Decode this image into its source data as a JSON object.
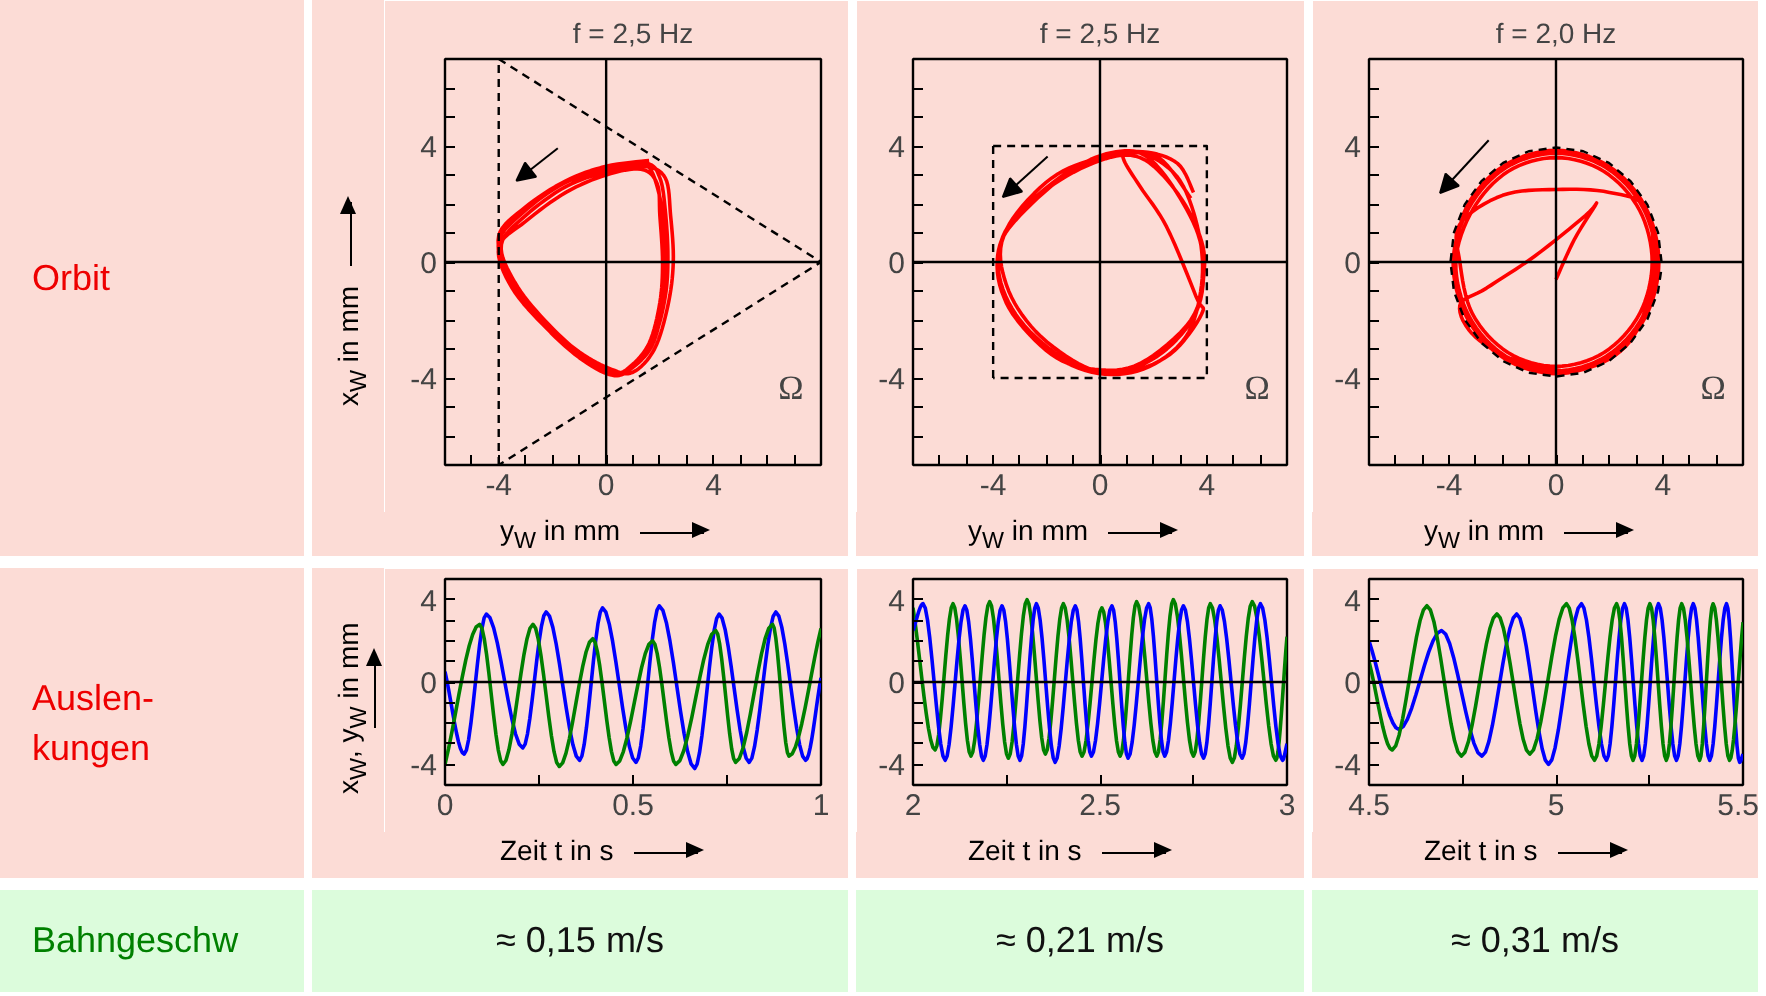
{
  "chart_data": [
    {
      "type": "line",
      "title": "f = 2,5 Hz",
      "xlabel": "y$_{W}$ in mm",
      "ylabel": "x$_{W}$ in mm",
      "xlim": [
        -6,
        8
      ],
      "ylim": [
        -7,
        7
      ],
      "xticks": [
        {
          "value": -6,
          "label": null
        },
        {
          "value": -5,
          "label": null
        },
        -4,
        {
          "value": -3,
          "label": null
        },
        {
          "value": -2,
          "label": null
        },
        {
          "value": -1,
          "label": null
        },
        0,
        {
          "value": 1,
          "label": null
        },
        {
          "value": 2,
          "label": null
        },
        {
          "value": 3,
          "label": null
        },
        4,
        {
          "value": 5,
          "label": null
        },
        {
          "value": 6,
          "label": null
        },
        {
          "value": 7,
          "label": null
        }
      ],
      "yticks": [
        {
          "value": -6,
          "label": null
        },
        {
          "value": -5,
          "label": null
        },
        -4,
        {
          "value": -3,
          "label": null
        },
        {
          "value": -2,
          "label": null
        },
        {
          "value": -1,
          "label": null
        },
        0,
        {
          "value": 1,
          "label": null
        },
        {
          "value": 2,
          "label": null
        },
        {
          "value": 3,
          "label": null
        },
        4,
        {
          "value": 5,
          "label": null
        },
        {
          "value": 6,
          "label": null
        }
      ],
      "series": [
        {
          "color": "#ff0000",
          "x": [
            1.6,
            0,
            -1.5,
            -3,
            -4.0,
            -3.6,
            -2.5,
            -1,
            0.2,
            1.0,
            1.8,
            2.3,
            2.5,
            2.4,
            2.2,
            1.4,
            0,
            -1.5,
            -3,
            -3.9,
            -3.4,
            -2.3,
            -0.9,
            0.3,
            0.9,
            1.6,
            2.0,
            2.1,
            2.0,
            1.9,
            1.3,
            0,
            -1.5,
            -3,
            -4.0,
            -3.5,
            -2.2,
            -0.8,
            0.4,
            1.1,
            1.8,
            2.2,
            2.3,
            2.2,
            2.0,
            1.5,
            0,
            -1.6,
            -3.1,
            -4.0,
            -3.6,
            -2.4,
            -1.0,
            0.2,
            0.9,
            1.7,
            2.1,
            2.2,
            2.1,
            1.8,
            1.5
          ],
          "values": [
            3.5,
            3.3,
            2.8,
            1.9,
            0.9,
            -0.5,
            -1.9,
            -3.1,
            -3.7,
            -3.8,
            -3.0,
            -1.5,
            0,
            1.6,
            2.9,
            3.3,
            3.1,
            2.6,
            1.6,
            0.6,
            -0.7,
            -2.0,
            -3.2,
            -3.8,
            -3.6,
            -2.8,
            -1.4,
            0,
            1.6,
            2.7,
            3.2,
            3.0,
            2.4,
            1.4,
            0.5,
            -0.9,
            -2.3,
            -3.4,
            -3.9,
            -3.5,
            -2.6,
            -1.2,
            0.2,
            1.8,
            2.9,
            3.4,
            3.2,
            2.7,
            1.7,
            0.7,
            -0.6,
            -2.1,
            -3.3,
            -3.9,
            -3.7,
            -2.9,
            -1.5,
            0,
            1.7,
            2.9,
            3.4
          ]
        },
        {
          "color": "#000000",
          "line_style": "dashed",
          "x": [
            -4,
            8,
            -4
          ],
          "values": [
            7,
            0,
            -7
          ]
        },
        {
          "color": "#000000",
          "line_style": "dashed",
          "x": [
            -4,
            -4
          ],
          "values": [
            -7,
            7
          ]
        }
      ],
      "ref_lines": [
        {
          "axis": "x",
          "value": 0,
          "color": "#000000"
        },
        {
          "axis": "y",
          "value": 0,
          "color": "#000000"
        }
      ],
      "annotations": [
        "Ω"
      ]
    },
    {
      "type": "line",
      "title": "f = 2,5 Hz",
      "xlabel": "y$_{W}$ in mm",
      "xlim": [
        -7,
        7
      ],
      "ylim": [
        -7,
        7
      ],
      "xticks": [
        {
          "value": -6,
          "label": null
        },
        {
          "value": -5,
          "label": null
        },
        -4,
        {
          "value": -3,
          "label": null
        },
        {
          "value": -2,
          "label": null
        },
        {
          "value": -1,
          "label": null
        },
        0,
        {
          "value": 1,
          "label": null
        },
        {
          "value": 2,
          "label": null
        },
        {
          "value": 3,
          "label": null
        },
        4,
        {
          "value": 5,
          "label": null
        },
        {
          "value": 6,
          "label": null
        }
      ],
      "yticks": [
        {
          "value": -6,
          "label": null
        },
        {
          "value": -5,
          "label": null
        },
        -4,
        {
          "value": -3,
          "label": null
        },
        {
          "value": -2,
          "label": null
        },
        {
          "value": -1,
          "label": null
        },
        0,
        {
          "value": 1,
          "label": null
        },
        {
          "value": 2,
          "label": null
        },
        {
          "value": 3,
          "label": null
        },
        4,
        {
          "value": 5,
          "label": null
        },
        {
          "value": 6,
          "label": null
        }
      ],
      "series": [
        {
          "color": "#ff0000",
          "x": [
            3.4,
            2.2,
            0.8,
            -1.2,
            -3.3,
            -3.8,
            -3.4,
            -1.8,
            -0.2,
            1.5,
            3.4,
            3.9,
            3.7,
            2.8,
            1.5,
            0,
            -2,
            -3.6,
            -3.5,
            -2.4,
            -0.6,
            0.8,
            2.5,
            3.7,
            3.8,
            3.0,
            1.8,
            0.6,
            -1,
            -3,
            -3.8,
            -3.6,
            -2.2,
            -0.3,
            1.6,
            3.2,
            3.8,
            3.7,
            3.0,
            1.8,
            1.0,
            0.9,
            1.5,
            2.5,
            3.6,
            3.8,
            2.6,
            0.8,
            -1.2,
            -3.0,
            -3.8,
            -3.4,
            -1.8,
            0,
            1.6,
            2.9,
            3.5
          ],
          "values": [
            2.2,
            3.6,
            3.7,
            3.1,
            1.4,
            0,
            -1.6,
            -3.2,
            -3.7,
            -3.5,
            -2.0,
            -0.3,
            1.0,
            2.5,
            3.6,
            3.5,
            2.5,
            0.9,
            -0.8,
            -2.4,
            -3.6,
            -3.8,
            -3.0,
            -1.5,
            0.5,
            2.2,
            3.6,
            3.8,
            3.2,
            1.6,
            0.4,
            -1.2,
            -2.9,
            -3.8,
            -3.7,
            -2.6,
            -0.8,
            1.0,
            2.8,
            3.7,
            3.75,
            3.5,
            2.6,
            1.2,
            -1.2,
            -1.8,
            -3.2,
            -3.8,
            -3.4,
            -2.0,
            -0.3,
            1.3,
            2.9,
            3.6,
            3.8,
            3.4,
            2.4
          ]
        },
        {
          "color": "#000000",
          "line_style": "dashed",
          "x": [
            -4,
            4,
            4,
            -4
          ],
          "values": [
            4,
            4,
            -4,
            -4
          ]
        },
        {
          "color": "#000000",
          "line_style": "dashed",
          "x": [
            -4,
            -4
          ],
          "values": [
            -4,
            4
          ]
        }
      ],
      "ref_lines": [
        {
          "axis": "x",
          "value": 0,
          "color": "#000000"
        },
        {
          "axis": "y",
          "value": 0,
          "color": "#000000"
        }
      ],
      "annotations": [
        "Ω"
      ]
    },
    {
      "type": "line",
      "title": "f = 2,0 Hz",
      "xlabel": "y$_{W}$ in mm",
      "xlim": [
        -7,
        7
      ],
      "ylim": [
        -7,
        7
      ],
      "xticks": [
        {
          "value": -6,
          "label": null
        },
        {
          "value": -5,
          "label": null
        },
        -4,
        {
          "value": -3,
          "label": null
        },
        {
          "value": -2,
          "label": null
        },
        {
          "value": -1,
          "label": null
        },
        0,
        {
          "value": 1,
          "label": null
        },
        {
          "value": 2,
          "label": null
        },
        {
          "value": 3,
          "label": null
        },
        4,
        {
          "value": 5,
          "label": null
        },
        {
          "value": 6,
          "label": null
        }
      ],
      "yticks": [
        {
          "value": -6,
          "label": null
        },
        {
          "value": -5,
          "label": null
        },
        -4,
        {
          "value": -3,
          "label": null
        },
        {
          "value": -2,
          "label": null
        },
        {
          "value": -1,
          "label": null
        },
        0,
        {
          "value": 1,
          "label": null
        },
        {
          "value": 2,
          "label": null
        },
        {
          "value": 3,
          "label": null
        },
        4,
        {
          "value": 5,
          "label": null
        },
        {
          "value": 6,
          "label": null
        }
      ],
      "series": [
        {
          "color": "#ff0000",
          "x": [
            0,
            0.7,
            1.5,
            1.1,
            -0.8,
            -2.6,
            -3.6,
            -3.0,
            -1.2,
            1.0,
            2.8,
            3.6,
            3.4,
            2.0,
            0,
            -2,
            -3.6,
            -3.6,
            -3.12,
            -1.8,
            0,
            1.8,
            3.12,
            3.6,
            3.12,
            1.8,
            0,
            -1.8,
            -3.12,
            -3.75,
            -3.25,
            -1.88,
            0,
            1.88,
            3.25,
            3.75,
            3.25,
            1.88,
            0,
            -1.88,
            -3.25,
            -3.85,
            -3.33,
            -1.93,
            0,
            1.93,
            3.33,
            3.85,
            3.33,
            1.93,
            0,
            -1.93,
            -3.33,
            -3.85
          ],
          "values": [
            -0.6,
            0.8,
            2.0,
            1.6,
            0.2,
            -0.9,
            -1.5,
            -2.6,
            -3.5,
            -3.7,
            -2.7,
            -0.5,
            1.8,
            2.4,
            2.5,
            2.3,
            1.3,
            0,
            -1.8,
            -3.12,
            -3.6,
            -3.12,
            -1.8,
            0,
            1.8,
            3.12,
            3.6,
            3.12,
            1.8,
            0,
            -1.88,
            -3.25,
            -3.75,
            -3.25,
            -1.88,
            0,
            1.88,
            3.25,
            3.75,
            3.25,
            1.88,
            0,
            -1.93,
            -3.33,
            -3.85,
            -3.33,
            -1.93,
            0,
            1.93,
            3.33,
            3.85,
            3.33,
            1.93,
            0
          ]
        },
        {
          "color": "#000000",
          "line_style": "dashed",
          "x": [
            3.95,
            3.82,
            3.42,
            2.79,
            1.98,
            1.02,
            0,
            -1.02,
            -1.98,
            -2.79,
            -3.42,
            -3.82,
            -3.95,
            -3.82,
            -3.42,
            -2.79,
            -1.98,
            -1.02,
            0,
            1.02,
            1.98,
            2.79,
            3.42,
            3.82,
            3.93
          ],
          "values": [
            0,
            1.02,
            1.98,
            2.79,
            3.42,
            3.82,
            3.95,
            3.82,
            3.42,
            2.79,
            1.98,
            1.02,
            0,
            -1.02,
            -1.98,
            -2.79,
            -3.42,
            -3.82,
            -3.95,
            -3.82,
            -3.42,
            -2.79,
            -1.98,
            -1.02,
            -0.34
          ]
        }
      ],
      "ref_lines": [
        {
          "axis": "x",
          "value": 0,
          "color": "#000000"
        },
        {
          "axis": "y",
          "value": 0,
          "color": "#000000"
        }
      ],
      "annotations": [
        "Ω"
      ]
    },
    {
      "type": "line",
      "xlabel": "Zeit t in s",
      "ylabel": "x$_{W}$, y$_{W}$ in mm",
      "xlim": [
        0,
        1
      ],
      "ylim": [
        -5,
        5
      ],
      "xticks": [
        0,
        {
          "value": 0.25,
          "label": null
        },
        0.5,
        {
          "value": 0.75,
          "label": null
        },
        1
      ],
      "yticks": [
        -4,
        {
          "value": -3,
          "label": null
        },
        {
          "value": -2,
          "label": null
        },
        {
          "value": -1,
          "label": null
        },
        0,
        {
          "value": 1,
          "label": null
        },
        {
          "value": 2,
          "label": null
        },
        {
          "value": 3,
          "label": null
        },
        4
      ],
      "series": [
        {
          "color": "#0000ff",
          "x": [
            0,
            0.051,
            0.11,
            0.207,
            0.269,
            0.358,
            0.419,
            0.508,
            0.57,
            0.664,
            0.729,
            0.809,
            0.88,
            0.959,
            1.0
          ],
          "values": [
            0.5,
            -3.5,
            3.3,
            -3.2,
            3.4,
            -3.8,
            3.6,
            -3.9,
            3.7,
            -4.2,
            3.3,
            -3.9,
            3.4,
            -3.8,
            0.2
          ]
        },
        {
          "color": "#008000",
          "x": [
            0,
            0.092,
            0.154,
            0.234,
            0.304,
            0.393,
            0.455,
            0.552,
            0.614,
            0.72,
            0.773,
            0.871,
            0.915,
            1.0
          ],
          "values": [
            -4.0,
            2.8,
            -4.0,
            2.8,
            -4.1,
            2.1,
            -4.0,
            2.0,
            -4.0,
            2.5,
            -3.9,
            2.8,
            -3.6,
            2.6
          ]
        }
      ],
      "ref_lines": [
        {
          "axis": "y",
          "value": 0,
          "color": "#000000"
        }
      ]
    },
    {
      "type": "line",
      "xlabel": "Zeit t in s",
      "xlim": [
        2,
        3
      ],
      "ylim": [
        -5,
        5
      ],
      "xticks": [
        2,
        {
          "value": 2.25,
          "label": null
        },
        2.5,
        {
          "value": 2.75,
          "label": null
        },
        3
      ],
      "yticks": [
        -4,
        {
          "value": -3,
          "label": null
        },
        {
          "value": -2,
          "label": null
        },
        {
          "value": -1,
          "label": null
        },
        0,
        {
          "value": 1,
          "label": null
        },
        {
          "value": 2,
          "label": null
        },
        {
          "value": 3,
          "label": null
        },
        4
      ],
      "series": [
        {
          "color": "#008000",
          "x": [
            2.0,
            2.059,
            2.107,
            2.155,
            2.205,
            2.255,
            2.305,
            2.354,
            2.402,
            2.452,
            2.505,
            2.554,
            2.598,
            2.652,
            2.696,
            2.75,
            2.795,
            2.854,
            2.907,
            2.97,
            3.0
          ],
          "values": [
            3.6,
            -3.3,
            3.8,
            -3.6,
            3.9,
            -3.7,
            4.0,
            -3.5,
            3.8,
            -3.6,
            3.6,
            -3.6,
            3.9,
            -3.6,
            4.0,
            -3.6,
            3.8,
            -3.9,
            3.9,
            -3.8,
            2.2
          ]
        },
        {
          "color": "#0000ff",
          "x": [
            2.0,
            2.027,
            2.086,
            2.139,
            2.188,
            2.238,
            2.286,
            2.33,
            2.38,
            2.434,
            2.477,
            2.532,
            2.575,
            2.63,
            2.673,
            2.723,
            2.777,
            2.821,
            2.88,
            2.929,
            2.988,
            3.0
          ],
          "values": [
            2.5,
            3.8,
            -3.8,
            3.7,
            -3.8,
            3.7,
            -3.8,
            3.8,
            -3.9,
            3.7,
            -3.6,
            3.7,
            -3.7,
            3.8,
            -3.6,
            3.7,
            -3.7,
            3.7,
            -3.7,
            3.8,
            -3.8,
            -3.0
          ]
        }
      ],
      "ref_lines": [
        {
          "axis": "y",
          "value": 0,
          "color": "#000000"
        }
      ]
    },
    {
      "type": "line",
      "xlabel": "Zeit t in s",
      "xlim": [
        4.5,
        5.5
      ],
      "ylim": [
        -5,
        5
      ],
      "xticks": [
        4.5,
        {
          "value": 4.75,
          "label": null
        },
        5,
        {
          "value": 5.25,
          "label": null
        },
        5.5
      ],
      "yticks": [
        -4,
        {
          "value": -3,
          "label": null
        },
        {
          "value": -2,
          "label": null
        },
        {
          "value": -1,
          "label": null
        },
        0,
        {
          "value": 1,
          "label": null
        },
        {
          "value": 2,
          "label": null
        },
        {
          "value": 3,
          "label": null
        },
        4
      ],
      "series": [
        {
          "color": "#0000ff",
          "x": [
            4.5,
            4.58,
            4.694,
            4.802,
            4.895,
            4.98,
            5.068,
            5.135,
            5.183,
            5.23,
            5.274,
            5.322,
            5.367,
            5.411,
            5.456,
            5.491,
            5.5
          ],
          "values": [
            2.0,
            -2.3,
            2.5,
            -3.6,
            3.3,
            -4.0,
            3.8,
            -3.8,
            3.8,
            -3.8,
            3.8,
            -3.8,
            3.8,
            -3.8,
            3.8,
            -3.9,
            -3.5
          ]
        },
        {
          "color": "#008000",
          "x": [
            4.5,
            4.562,
            4.655,
            4.747,
            4.842,
            4.93,
            5.028,
            5.103,
            5.162,
            5.206,
            5.251,
            5.295,
            5.336,
            5.384,
            5.42,
            5.464,
            5.5
          ],
          "values": [
            1.0,
            -3.3,
            3.7,
            -3.6,
            3.3,
            -3.5,
            3.8,
            -3.8,
            3.8,
            -3.8,
            3.8,
            -3.8,
            3.8,
            -3.8,
            3.8,
            -3.8,
            2.9
          ]
        }
      ],
      "ref_lines": [
        {
          "axis": "y",
          "value": 0,
          "color": "#000000"
        }
      ]
    },
    {
      "type": "other",
      "annotations": [
        "Orbit",
        "Auslen-\nkungen",
        "Bahngeschw",
        "≈ 0,15 m/s",
        "≈ 0,21 m/s",
        "≈ 0,31 m/s"
      ]
    }
  ]
}
